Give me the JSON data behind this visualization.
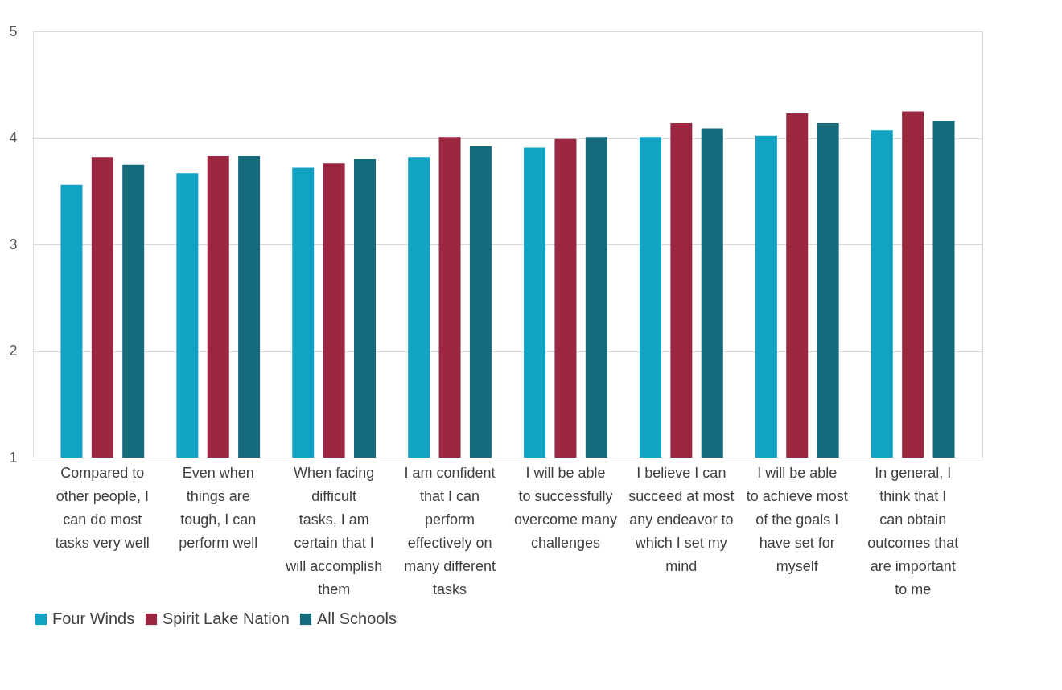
{
  "chart_data": {
    "type": "bar",
    "categories": [
      "Compared to other people, I can do most tasks very well",
      "Even when things are tough, I can perform well",
      "When facing difficult tasks, I am certain that I will accomplish them",
      "I am confident that I can perform effectively on many different tasks",
      "I will be able to successfully overcome many challenges",
      "I believe I can succeed at most any endeavor to which I set my mind",
      "I will be able to achieve most of the goals I have set for myself",
      "In general, I think that I can obtain outcomes that are important to me"
    ],
    "series": [
      {
        "name": "Four Winds",
        "color": "#12a3c4",
        "values": [
          3.56,
          3.67,
          3.72,
          3.82,
          3.91,
          4.01,
          4.02,
          4.07
        ]
      },
      {
        "name": "Spirit Lake Nation",
        "color": "#9b2740",
        "values": [
          3.82,
          3.83,
          3.76,
          4.01,
          3.99,
          4.14,
          4.23,
          4.25
        ]
      },
      {
        "name": "All Schools",
        "color": "#156a7c",
        "values": [
          3.75,
          3.83,
          3.8,
          3.92,
          4.01,
          4.09,
          4.14,
          4.16
        ]
      }
    ],
    "ylim": [
      1,
      5
    ],
    "yticks": [
      1,
      2,
      3,
      4,
      5
    ],
    "grid": "y",
    "legend": "bottom"
  }
}
